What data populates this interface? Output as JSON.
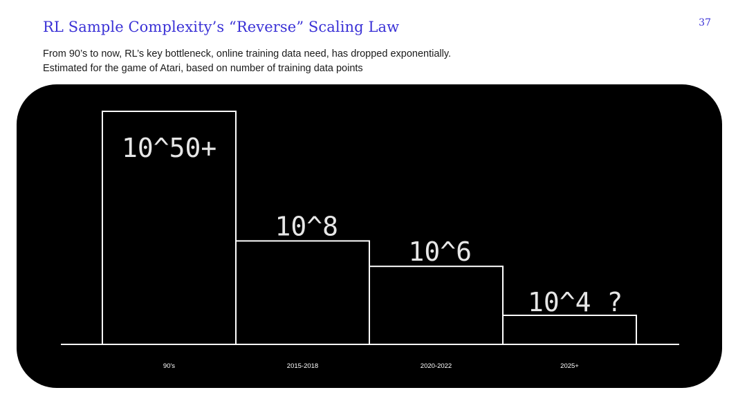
{
  "slide": {
    "title": "RL Sample Complexity’s “Reverse” Scaling Law",
    "page_number": "37",
    "subtitle_line1": "From 90’s to now, RL’s key bottleneck, online training data need, has dropped exponentially.",
    "subtitle_line2": "Estimated for the game of Atari, based on number of training data points"
  },
  "colors": {
    "title": "#3a31d6",
    "panel": "#000000",
    "bars": "#ffffff",
    "label_text": "#e6e6e6"
  },
  "chart_data": {
    "type": "bar",
    "categories": [
      "90's",
      "2015-2018",
      "2020-2022",
      "2025+"
    ],
    "log10_values": [
      50,
      8,
      6,
      4
    ],
    "value_labels": [
      "10^50+",
      "10^8",
      "10^6",
      "10^4 ?"
    ],
    "yscale": "log (compressed, illustrative)",
    "title": "",
    "xlabel": "",
    "ylabel": "",
    "grid": false,
    "legend": "none",
    "bar_style": "outline"
  }
}
